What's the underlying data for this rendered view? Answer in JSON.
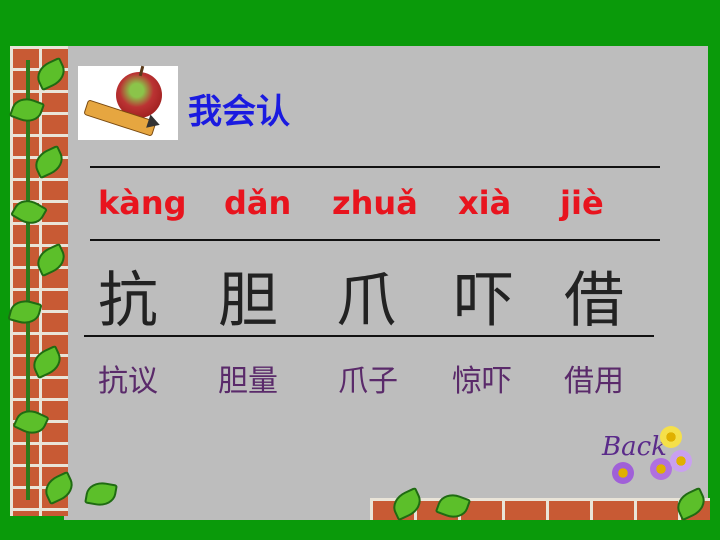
{
  "header": {
    "title": "我会认"
  },
  "pinyin": [
    "kàng",
    "dǎn",
    "zhuǎ",
    "xià",
    "jiè"
  ],
  "characters": [
    "抗",
    "胆",
    "爪",
    "吓",
    "借"
  ],
  "words": [
    "抗议",
    "胆量",
    "爪子",
    "惊吓",
    "借用"
  ],
  "nav": {
    "back_label": "Back"
  },
  "colors": {
    "frame": "#0a9a0a",
    "panel": "#bdbdbd",
    "title": "#1a1ae0",
    "pinyin": "#e8141e",
    "words": "#5a2a6a"
  },
  "icons": {
    "clipart": "apple-pencil-icon",
    "decor": "brick-wall-vine"
  }
}
